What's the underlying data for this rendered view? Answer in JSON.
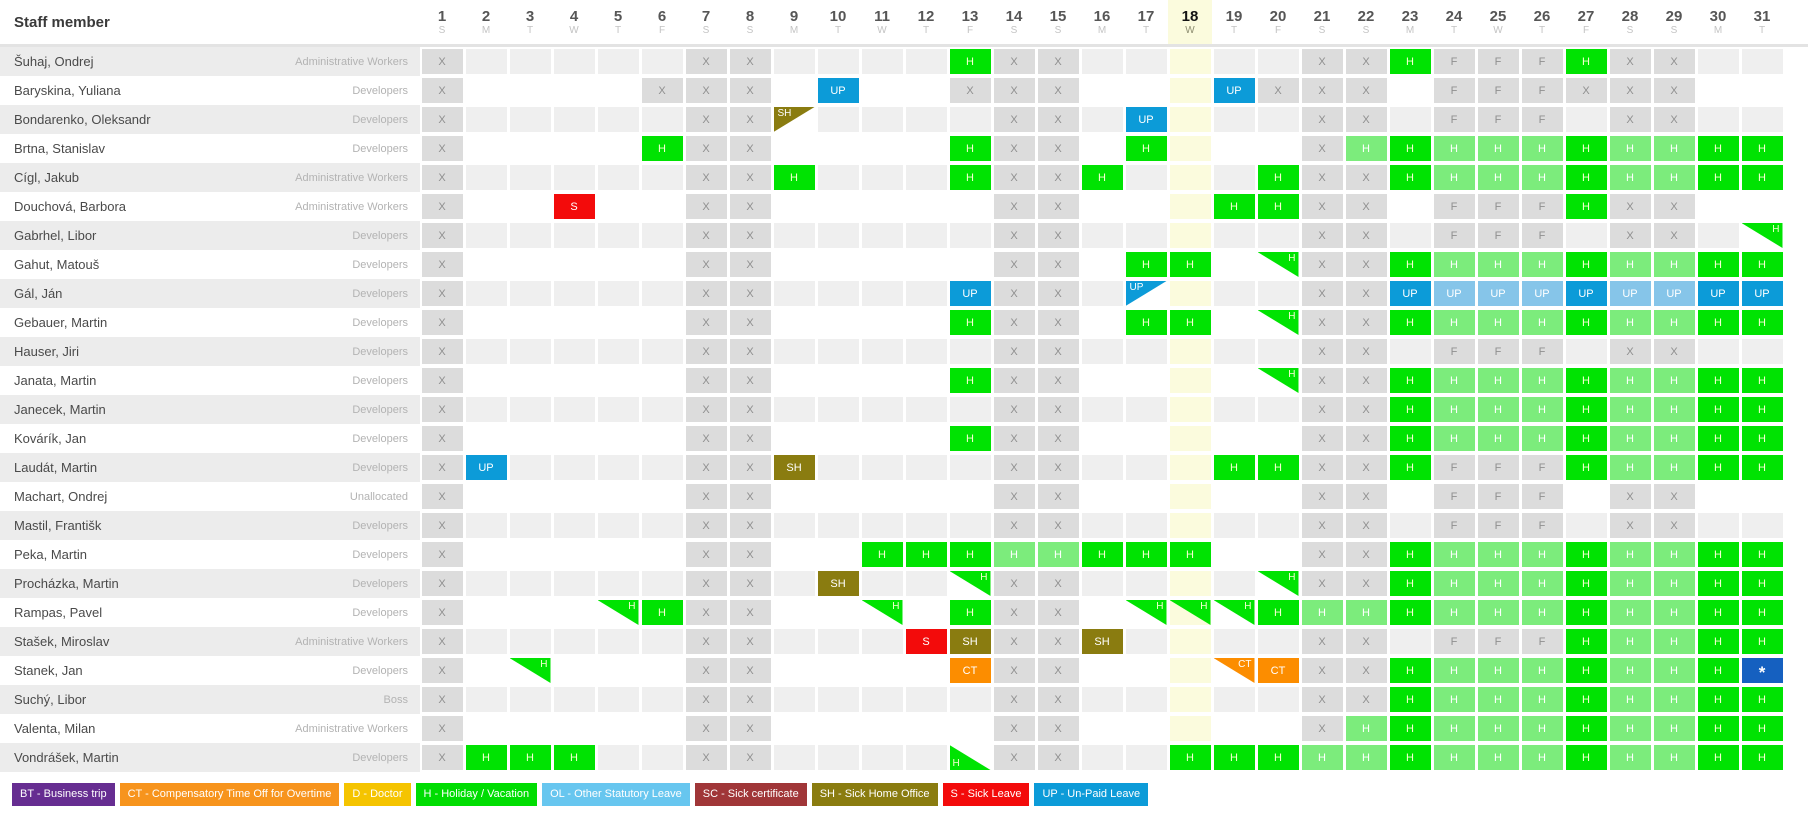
{
  "header": {
    "title": "Staff member"
  },
  "calendar": {
    "today": 18,
    "days": [
      {
        "num": 1,
        "dow": "S"
      },
      {
        "num": 2,
        "dow": "M"
      },
      {
        "num": 3,
        "dow": "T"
      },
      {
        "num": 4,
        "dow": "W"
      },
      {
        "num": 5,
        "dow": "T"
      },
      {
        "num": 6,
        "dow": "F"
      },
      {
        "num": 7,
        "dow": "S"
      },
      {
        "num": 8,
        "dow": "S"
      },
      {
        "num": 9,
        "dow": "M"
      },
      {
        "num": 10,
        "dow": "T"
      },
      {
        "num": 11,
        "dow": "W"
      },
      {
        "num": 12,
        "dow": "T"
      },
      {
        "num": 13,
        "dow": "F"
      },
      {
        "num": 14,
        "dow": "S"
      },
      {
        "num": 15,
        "dow": "S"
      },
      {
        "num": 16,
        "dow": "M"
      },
      {
        "num": 17,
        "dow": "T"
      },
      {
        "num": 18,
        "dow": "W"
      },
      {
        "num": 19,
        "dow": "T"
      },
      {
        "num": 20,
        "dow": "F"
      },
      {
        "num": 21,
        "dow": "S"
      },
      {
        "num": 22,
        "dow": "S"
      },
      {
        "num": 23,
        "dow": "M"
      },
      {
        "num": 24,
        "dow": "T"
      },
      {
        "num": 25,
        "dow": "W"
      },
      {
        "num": 26,
        "dow": "T"
      },
      {
        "num": 27,
        "dow": "F"
      },
      {
        "num": 28,
        "dow": "S"
      },
      {
        "num": 29,
        "dow": "S"
      },
      {
        "num": 30,
        "dow": "M"
      },
      {
        "num": 31,
        "dow": "T"
      }
    ]
  },
  "colors": {
    "today": "#fbfbdd",
    "nonwork": "#dcdcdc",
    "rowalt": "#efefef",
    "h": "#00e302",
    "hl": "#7cec7c",
    "up": "#0c9bd8",
    "upl": "#86c5e9",
    "sh": "#8a7c10",
    "s": "#f30b0b",
    "ct": "#fc8d00",
    "ast": "#1560c0"
  },
  "codes": {
    "X": {
      "text": "X",
      "color": "nonwork"
    },
    "F": {
      "text": "F",
      "color": "nonwork"
    },
    "H": {
      "text": "H",
      "color": "h"
    },
    "HL": {
      "text": "H",
      "color": "hl"
    },
    "UP": {
      "text": "UP",
      "color": "up"
    },
    "UPL": {
      "text": "UP",
      "color": "upl"
    },
    "SH": {
      "text": "SH",
      "color": "sh"
    },
    "S": {
      "text": "S",
      "color": "s"
    },
    "CT": {
      "text": "CT",
      "color": "ct"
    },
    "AST": {
      "text": "*",
      "color": "ast"
    },
    "H_TR": {
      "text": "H",
      "color": "h",
      "tri": "tr"
    },
    "CT_TR": {
      "text": "CT",
      "color": "ct",
      "tri": "tr"
    },
    "UP_TL": {
      "text": "UP",
      "color": "up",
      "tri": "tl"
    },
    "SH_TL": {
      "text": "SH",
      "color": "sh",
      "tri": "tl"
    },
    "H_BL": {
      "text": "H",
      "color": "h",
      "tri": "bl"
    }
  },
  "staff": [
    {
      "name": "Šuhaj, Ondrej",
      "role": "Administrative Workers",
      "cells": {
        "1": "X",
        "7": "X",
        "8": "X",
        "13": "H",
        "14": "X",
        "15": "X",
        "21": "X",
        "22": "X",
        "23": "H",
        "24": "F",
        "25": "F",
        "26": "F",
        "27": "H",
        "28": "X",
        "29": "X"
      }
    },
    {
      "name": "Baryskina, Yuliana",
      "role": "Developers",
      "cells": {
        "1": "X",
        "6": "X",
        "7": "X",
        "8": "X",
        "10": "UP",
        "13": "X",
        "14": "X",
        "15": "X",
        "19": "UP",
        "20": "X",
        "21": "X",
        "22": "X",
        "24": "F",
        "25": "F",
        "26": "F",
        "27": "X",
        "28": "X",
        "29": "X"
      }
    },
    {
      "name": "Bondarenko, Oleksandr",
      "role": "Developers",
      "cells": {
        "1": "X",
        "7": "X",
        "8": "X",
        "9": "SH_TL",
        "14": "X",
        "15": "X",
        "17": "UP",
        "21": "X",
        "22": "X",
        "24": "F",
        "25": "F",
        "26": "F",
        "28": "X",
        "29": "X"
      }
    },
    {
      "name": "Brtna, Stanislav",
      "role": "Developers",
      "cells": {
        "1": "X",
        "6": "H",
        "7": "X",
        "8": "X",
        "13": "H",
        "14": "X",
        "15": "X",
        "17": "H",
        "21": "X",
        "22": "HL",
        "23": "H",
        "24": "HL",
        "25": "HL",
        "26": "HL",
        "27": "H",
        "28": "HL",
        "29": "HL",
        "30": "H",
        "31": "H"
      }
    },
    {
      "name": "Cígl, Jakub",
      "role": "Administrative Workers",
      "cells": {
        "1": "X",
        "7": "X",
        "8": "X",
        "9": "H",
        "13": "H",
        "14": "X",
        "15": "X",
        "16": "H",
        "20": "H",
        "21": "X",
        "22": "X",
        "23": "H",
        "24": "HL",
        "25": "HL",
        "26": "HL",
        "27": "H",
        "28": "HL",
        "29": "HL",
        "30": "H",
        "31": "H"
      }
    },
    {
      "name": "Douchová, Barbora",
      "role": "Administrative Workers",
      "cells": {
        "1": "X",
        "4": "S",
        "7": "X",
        "8": "X",
        "14": "X",
        "15": "X",
        "19": "H",
        "20": "H",
        "21": "X",
        "22": "X",
        "24": "F",
        "25": "F",
        "26": "F",
        "27": "H",
        "28": "X",
        "29": "X"
      }
    },
    {
      "name": "Gabrhel, Libor",
      "role": "Developers",
      "cells": {
        "1": "X",
        "7": "X",
        "8": "X",
        "14": "X",
        "15": "X",
        "21": "X",
        "22": "X",
        "24": "F",
        "25": "F",
        "26": "F",
        "28": "X",
        "29": "X",
        "31": "H_TR"
      }
    },
    {
      "name": "Gahut, Matouš",
      "role": "Developers",
      "cells": {
        "1": "X",
        "7": "X",
        "8": "X",
        "14": "X",
        "15": "X",
        "17": "H",
        "18": "H",
        "20": "H_TR",
        "21": "X",
        "22": "X",
        "23": "H",
        "24": "HL",
        "25": "HL",
        "26": "HL",
        "27": "H",
        "28": "HL",
        "29": "HL",
        "30": "H",
        "31": "H"
      }
    },
    {
      "name": "Gál, Ján",
      "role": "Developers",
      "cells": {
        "1": "X",
        "7": "X",
        "8": "X",
        "13": "UP",
        "14": "X",
        "15": "X",
        "17": "UP_TL",
        "21": "X",
        "22": "X",
        "23": "UP",
        "24": "UPL",
        "25": "UPL",
        "26": "UPL",
        "27": "UP",
        "28": "UPL",
        "29": "UPL",
        "30": "UP",
        "31": "UP"
      }
    },
    {
      "name": "Gebauer, Martin",
      "role": "Developers",
      "cells": {
        "1": "X",
        "7": "X",
        "8": "X",
        "13": "H",
        "14": "X",
        "15": "X",
        "17": "H",
        "18": "H",
        "20": "H_TR",
        "21": "X",
        "22": "X",
        "23": "H",
        "24": "HL",
        "25": "HL",
        "26": "HL",
        "27": "H",
        "28": "HL",
        "29": "HL",
        "30": "H",
        "31": "H"
      }
    },
    {
      "name": "Hauser, Jiri",
      "role": "Developers",
      "cells": {
        "1": "X",
        "7": "X",
        "8": "X",
        "14": "X",
        "15": "X",
        "21": "X",
        "22": "X",
        "24": "F",
        "25": "F",
        "26": "F",
        "28": "X",
        "29": "X"
      }
    },
    {
      "name": "Janata, Martin",
      "role": "Developers",
      "cells": {
        "1": "X",
        "7": "X",
        "8": "X",
        "13": "H",
        "14": "X",
        "15": "X",
        "20": "H_TR",
        "21": "X",
        "22": "X",
        "23": "H",
        "24": "HL",
        "25": "HL",
        "26": "HL",
        "27": "H",
        "28": "HL",
        "29": "HL",
        "30": "H",
        "31": "H"
      }
    },
    {
      "name": "Janecek, Martin",
      "role": "Developers",
      "cells": {
        "1": "X",
        "7": "X",
        "8": "X",
        "14": "X",
        "15": "X",
        "21": "X",
        "22": "X",
        "23": "H",
        "24": "HL",
        "25": "HL",
        "26": "HL",
        "27": "H",
        "28": "HL",
        "29": "HL",
        "30": "H",
        "31": "H"
      }
    },
    {
      "name": "Kovárík, Jan",
      "role": "Developers",
      "cells": {
        "1": "X",
        "7": "X",
        "8": "X",
        "13": "H",
        "14": "X",
        "15": "X",
        "21": "X",
        "22": "X",
        "23": "H",
        "24": "HL",
        "25": "HL",
        "26": "HL",
        "27": "H",
        "28": "HL",
        "29": "HL",
        "30": "H",
        "31": "H"
      }
    },
    {
      "name": "Laudát, Martin",
      "role": "Developers",
      "cells": {
        "1": "X",
        "2": "UP",
        "7": "X",
        "8": "X",
        "9": "SH",
        "14": "X",
        "15": "X",
        "19": "H",
        "20": "H",
        "21": "X",
        "22": "X",
        "23": "H",
        "24": "F",
        "25": "F",
        "26": "F",
        "27": "H",
        "28": "HL",
        "29": "HL",
        "30": "H",
        "31": "H"
      }
    },
    {
      "name": "Machart, Ondrej",
      "role": "Unallocated",
      "cells": {
        "1": "X",
        "7": "X",
        "8": "X",
        "14": "X",
        "15": "X",
        "21": "X",
        "22": "X",
        "24": "F",
        "25": "F",
        "26": "F",
        "28": "X",
        "29": "X"
      }
    },
    {
      "name": "Mastil, Františk",
      "role": "Developers",
      "cells": {
        "1": "X",
        "7": "X",
        "8": "X",
        "14": "X",
        "15": "X",
        "21": "X",
        "22": "X",
        "24": "F",
        "25": "F",
        "26": "F",
        "28": "X",
        "29": "X"
      }
    },
    {
      "name": "Peka, Martin",
      "role": "Developers",
      "cells": {
        "1": "X",
        "7": "X",
        "8": "X",
        "11": "H",
        "12": "H",
        "13": "H",
        "14": "HL",
        "15": "HL",
        "16": "H",
        "17": "H",
        "18": "H",
        "21": "X",
        "22": "X",
        "23": "H",
        "24": "HL",
        "25": "HL",
        "26": "HL",
        "27": "H",
        "28": "HL",
        "29": "HL",
        "30": "H",
        "31": "H"
      }
    },
    {
      "name": "Procházka, Martin",
      "role": "Developers",
      "cells": {
        "1": "X",
        "7": "X",
        "8": "X",
        "10": "SH",
        "13": "H_TR",
        "14": "X",
        "15": "X",
        "20": "H_TR",
        "21": "X",
        "22": "X",
        "23": "H",
        "24": "HL",
        "25": "HL",
        "26": "HL",
        "27": "H",
        "28": "HL",
        "29": "HL",
        "30": "H",
        "31": "H"
      }
    },
    {
      "name": "Rampas, Pavel",
      "role": "Developers",
      "cells": {
        "1": "X",
        "5": "H_TR",
        "6": "H",
        "7": "X",
        "8": "X",
        "11": "H_TR",
        "13": "H",
        "14": "X",
        "15": "X",
        "17": "H_TR",
        "18": "H_TR",
        "19": "H_TR",
        "20": "H",
        "21": "HL",
        "22": "HL",
        "23": "H",
        "24": "HL",
        "25": "HL",
        "26": "HL",
        "27": "H",
        "28": "HL",
        "29": "HL",
        "30": "H",
        "31": "H"
      }
    },
    {
      "name": "Stašek, Miroslav",
      "role": "Administrative Workers",
      "cells": {
        "1": "X",
        "7": "X",
        "8": "X",
        "12": "S",
        "13": "SH",
        "14": "X",
        "15": "X",
        "16": "SH",
        "21": "X",
        "22": "X",
        "24": "F",
        "25": "F",
        "26": "F",
        "27": "H",
        "28": "HL",
        "29": "HL",
        "30": "H",
        "31": "H"
      }
    },
    {
      "name": "Stanek, Jan",
      "role": "Developers",
      "cells": {
        "1": "X",
        "3": "H_TR",
        "7": "X",
        "8": "X",
        "13": "CT",
        "14": "X",
        "15": "X",
        "19": "CT_TR",
        "20": "CT",
        "21": "X",
        "22": "X",
        "23": "H",
        "24": "HL",
        "25": "HL",
        "26": "HL",
        "27": "H",
        "28": "HL",
        "29": "HL",
        "30": "H",
        "31": "AST"
      }
    },
    {
      "name": "Suchý, Libor",
      "role": "Boss",
      "cells": {
        "1": "X",
        "7": "X",
        "8": "X",
        "14": "X",
        "15": "X",
        "21": "X",
        "22": "X",
        "23": "H",
        "24": "HL",
        "25": "HL",
        "26": "HL",
        "27": "H",
        "28": "HL",
        "29": "HL",
        "30": "H",
        "31": "H"
      }
    },
    {
      "name": "Valenta, Milan",
      "role": "Administrative Workers",
      "cells": {
        "1": "X",
        "7": "X",
        "8": "X",
        "14": "X",
        "15": "X",
        "21": "X",
        "22": "HL",
        "23": "H",
        "24": "HL",
        "25": "HL",
        "26": "HL",
        "27": "H",
        "28": "HL",
        "29": "HL",
        "30": "H",
        "31": "H"
      }
    },
    {
      "name": "Vondrášek, Martin",
      "role": "Developers",
      "cells": {
        "1": "X",
        "2": "H",
        "3": "H",
        "4": "H",
        "7": "X",
        "8": "X",
        "13": "H_BL",
        "14": "X",
        "15": "X",
        "18": "H",
        "19": "H",
        "20": "H",
        "21": "HL",
        "22": "HL",
        "23": "H",
        "24": "HL",
        "25": "HL",
        "26": "HL",
        "27": "H",
        "28": "HL",
        "29": "HL",
        "30": "H",
        "31": "H"
      }
    }
  ],
  "legend": [
    {
      "code": "BT",
      "label": "BT - Business trip",
      "color": "#662d91"
    },
    {
      "code": "CT",
      "label": "CT - Compensatory Time Off for Overtime",
      "color": "#f7941d"
    },
    {
      "code": "D",
      "label": "D - Doctor",
      "color": "#f5c400"
    },
    {
      "code": "H",
      "label": "H - Holiday / Vacation",
      "color": "#00dd02"
    },
    {
      "code": "OL",
      "label": "OL - Other Statutory Leave",
      "color": "#67c6ef"
    },
    {
      "code": "SC",
      "label": "SC - Sick certificate",
      "color": "#a03638"
    },
    {
      "code": "SH",
      "label": "SH - Sick Home Office",
      "color": "#8a7c10"
    },
    {
      "code": "S",
      "label": "S - Sick Leave",
      "color": "#f30b0b"
    },
    {
      "code": "UP",
      "label": "UP - Un-Paid Leave",
      "color": "#0c9bd8"
    }
  ]
}
